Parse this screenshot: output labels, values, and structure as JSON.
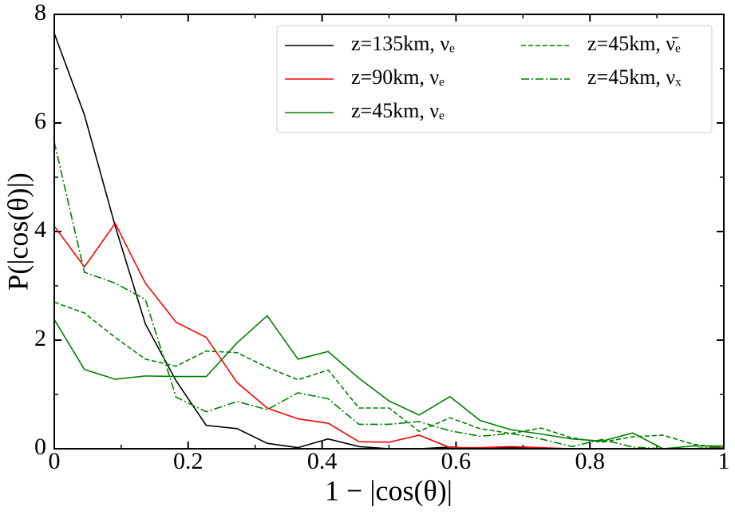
{
  "chart_data": {
    "type": "line",
    "x_label": "1 − |cos(θ)|",
    "y_label": "P(|cos(θ)|)",
    "x": [
      0,
      0.045,
      0.091,
      0.136,
      0.182,
      0.227,
      0.273,
      0.318,
      0.364,
      0.409,
      0.455,
      0.5,
      0.545,
      0.591,
      0.636,
      0.682,
      0.727,
      0.773,
      0.818,
      0.864,
      0.909,
      0.955,
      1
    ],
    "series": [
      {
        "name": "z=135km, νₑ",
        "color": "#000000",
        "dash": "solid",
        "values": [
          7.65,
          6.15,
          4.1,
          2.3,
          1.25,
          0.43,
          0.37,
          0.1,
          0.02,
          0.18,
          0.04,
          0.0,
          0.0,
          0.03,
          0.0,
          0.02,
          0.0,
          0.0,
          0.0,
          0.0,
          0.0,
          0.0,
          0.0
        ]
      },
      {
        "name": "z=90km, νₑ",
        "color": "#ff0000",
        "dash": "solid",
        "values": [
          4.1,
          3.35,
          4.15,
          3.05,
          2.33,
          2.05,
          1.22,
          0.75,
          0.55,
          0.47,
          0.13,
          0.12,
          0.25,
          0.02,
          0.02,
          0.04,
          0.02,
          0.0,
          0.0,
          0.0,
          0.0,
          0.0,
          0.02
        ]
      },
      {
        "name": "z=45km, νₑ",
        "color": "#008000",
        "dash": "solid",
        "values": [
          2.38,
          1.46,
          1.28,
          1.34,
          1.33,
          1.33,
          1.95,
          2.45,
          1.65,
          1.79,
          1.3,
          0.88,
          0.62,
          0.96,
          0.52,
          0.35,
          0.27,
          0.18,
          0.14,
          0.29,
          0.0,
          0.05,
          0.05
        ]
      },
      {
        "name": "z=45km, ν̄ₑ",
        "color": "#008000",
        "dash": "dashed",
        "values": [
          2.7,
          2.5,
          2.05,
          1.65,
          1.52,
          1.8,
          1.77,
          1.5,
          1.27,
          1.45,
          0.75,
          0.75,
          0.32,
          0.57,
          0.37,
          0.28,
          0.38,
          0.2,
          0.12,
          0.22,
          0.25,
          0.08,
          0.02
        ]
      },
      {
        "name": "z=45km, νₓ",
        "color": "#008000",
        "dash": "dashdot",
        "values": [
          5.65,
          3.25,
          3.05,
          2.75,
          0.95,
          0.68,
          0.87,
          0.72,
          1.03,
          0.92,
          0.45,
          0.45,
          0.5,
          0.33,
          0.23,
          0.28,
          0.18,
          0.04,
          0.17,
          0.03,
          0.0,
          0.0,
          0.05
        ]
      }
    ],
    "xlim": [
      0,
      1
    ],
    "ylim": [
      0,
      8
    ],
    "xticks": [
      0,
      0.2,
      0.4,
      0.6,
      0.8,
      1
    ],
    "yticks": [
      0,
      2,
      4,
      6,
      8
    ],
    "xminorticks": [
      0.1,
      0.3,
      0.5,
      0.7,
      0.9
    ],
    "yminorticks": [
      1,
      3,
      5,
      7
    ],
    "legend": "upper right",
    "legend_columns": 2
  }
}
